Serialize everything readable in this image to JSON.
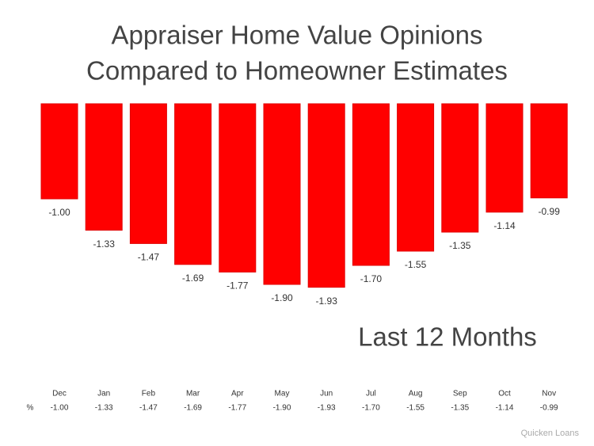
{
  "chart_data": {
    "type": "bar",
    "title": [
      "Appraiser Home Value Opinions",
      "Compared to Homeowner Estimates"
    ],
    "annotation": "Last 12 Months",
    "categories": [
      "Dec",
      "Jan",
      "Feb",
      "Mar",
      "Apr",
      "May",
      "Jun",
      "Jul",
      "Aug",
      "Sep",
      "Oct",
      "Nov"
    ],
    "values": [
      -1.0,
      -1.33,
      -1.47,
      -1.69,
      -1.77,
      -1.9,
      -1.93,
      -1.7,
      -1.55,
      -1.35,
      -1.14,
      -0.99
    ],
    "value_labels": [
      "-1.00",
      "-1.33",
      "-1.47",
      "-1.69",
      "-1.77",
      "-1.90",
      "-1.93",
      "-1.70",
      "-1.55",
      "-1.35",
      "-1.14",
      "-0.99"
    ],
    "color": "#ff0000",
    "table_row_label": "%",
    "source": "Quicken Loans"
  }
}
